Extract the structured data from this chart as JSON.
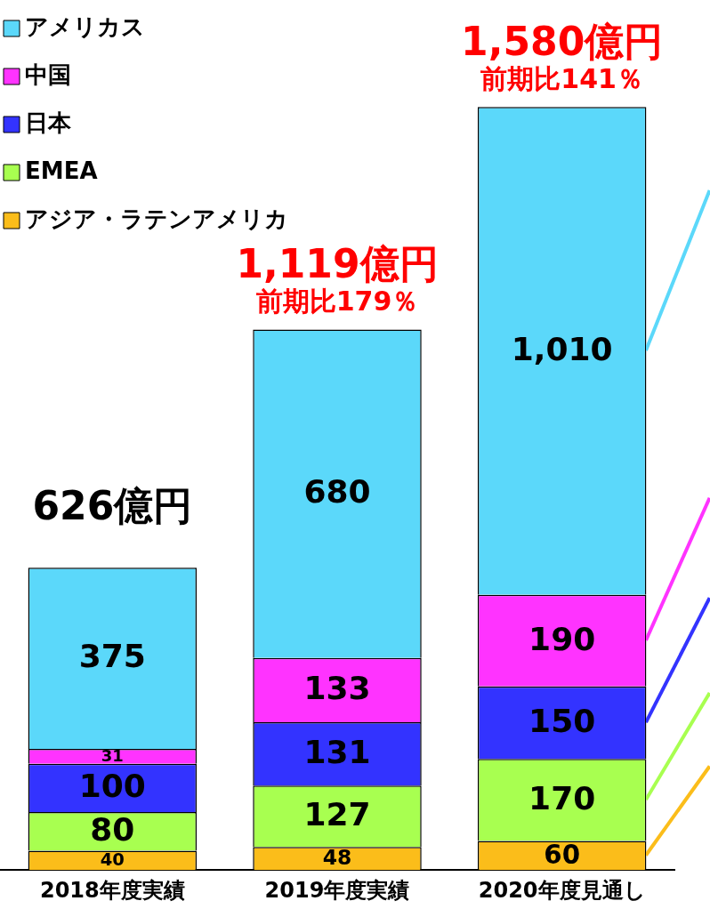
{
  "chart_data": {
    "type": "bar",
    "stacked": true,
    "legend": "top left",
    "grid": false,
    "categories": [
      "2018年度実績",
      "2019年度実績",
      "2020年度見通し"
    ],
    "series": [
      {
        "name": "アジア・ラテンアメリカ",
        "color": "#fbbd1a",
        "values": [
          40,
          48,
          60
        ],
        "value_labels": [
          "40",
          "48",
          "60"
        ]
      },
      {
        "name": "EMEA",
        "color": "#a8ff50",
        "values": [
          80,
          127,
          170
        ],
        "value_labels": [
          "80",
          "127",
          "170"
        ]
      },
      {
        "name": "日本",
        "color": "#3333ff",
        "values": [
          100,
          131,
          150
        ],
        "value_labels": [
          "100",
          "131",
          "150"
        ]
      },
      {
        "name": "中国",
        "color": "#ff33ff",
        "values": [
          31,
          133,
          190
        ],
        "value_labels": [
          "31",
          "133",
          "190"
        ]
      },
      {
        "name": "アメリカス",
        "color": "#5bd8fa",
        "values": [
          375,
          680,
          1010
        ],
        "value_labels": [
          "375",
          "680",
          "1,010"
        ]
      }
    ],
    "totals": [
      "626億円",
      "1,119億円",
      "1,580億円"
    ],
    "annotations": [
      {
        "text": "前期比179％",
        "x": "2019年度実績",
        "y": 1119
      },
      {
        "text": "前期比141％",
        "x": "2020年度見通し",
        "y": 1580
      }
    ]
  }
}
